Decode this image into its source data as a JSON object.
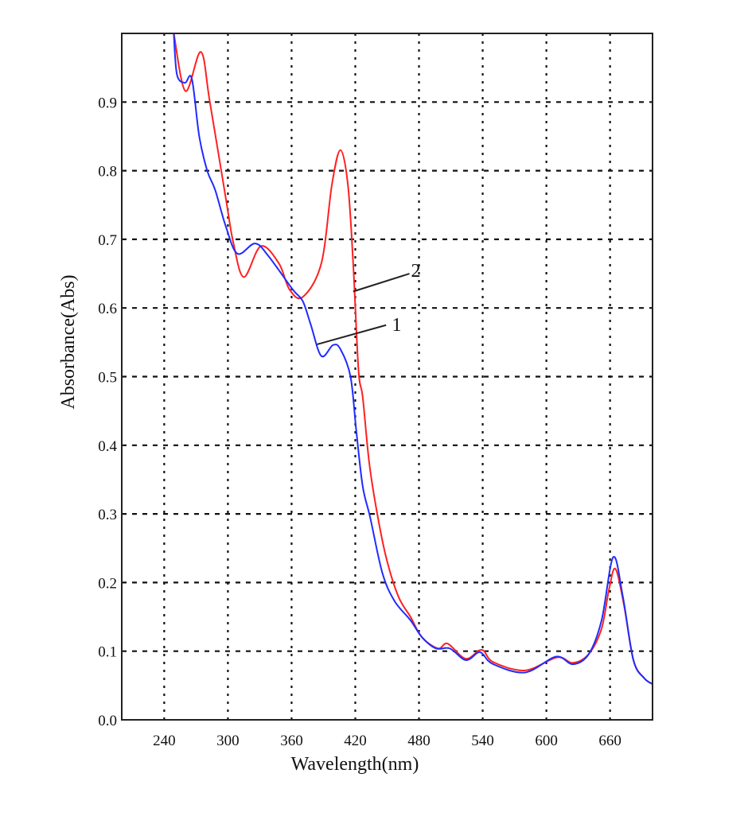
{
  "chart_data": {
    "type": "line",
    "title": "",
    "xlabel": "Wavelength(nm)",
    "ylabel": "Absorbance(Abs)",
    "xlim": [
      200,
      700
    ],
    "ylim": [
      0,
      1.0
    ],
    "grid": true,
    "xticks": [
      240,
      300,
      360,
      420,
      480,
      540,
      600,
      660
    ],
    "xtick_labels": [
      "240",
      "300",
      "360",
      "420",
      "480",
      "540",
      "600",
      "660"
    ],
    "yticks": [
      0,
      0.1,
      0.2,
      0.3,
      0.4,
      0.5,
      0.6,
      0.7,
      0.8,
      0.9
    ],
    "ytick_labels": [
      "0.0",
      "0.1",
      "0.2",
      "0.3",
      "0.4",
      "0.5",
      "0.6",
      "0.7",
      "0.8",
      "0.9"
    ],
    "series": [
      {
        "name": "1",
        "color": "#1f2cff",
        "x": [
          249,
          252,
          259.5,
          266,
          273,
          280.5,
          288,
          298,
          309,
          325.5,
          338,
          361,
          370.5,
          378,
          388,
          399,
          406,
          415.5,
          421,
          427,
          434,
          445.5,
          457,
          472,
          483,
          496,
          509,
          524,
          535.5,
          540,
          550,
          580,
          609,
          625,
          640,
          652,
          663,
          672,
          682,
          692,
          700
        ],
        "y": [
          1.0,
          0.94,
          0.928,
          0.934,
          0.85,
          0.8,
          0.772,
          0.719,
          0.679,
          0.694,
          0.676,
          0.627,
          0.61,
          0.576,
          0.53,
          0.546,
          0.54,
          0.5,
          0.42,
          0.34,
          0.295,
          0.214,
          0.173,
          0.145,
          0.12,
          0.104,
          0.104,
          0.087,
          0.098,
          0.096,
          0.081,
          0.069,
          0.092,
          0.081,
          0.096,
          0.145,
          0.237,
          0.18,
          0.087,
          0.061,
          0.052
        ]
      },
      {
        "name": "2",
        "color": "#ff2020",
        "x": [
          249,
          260,
          274.5,
          283,
          298,
          305,
          315,
          331,
          348,
          358,
          370.5,
          388,
          398,
          406,
          413,
          418,
          423,
          427,
          433,
          440,
          449,
          460.5,
          472,
          483,
          498,
          507,
          524,
          539,
          550,
          580,
          610,
          625,
          640,
          652,
          659,
          665,
          673,
          682,
          692,
          700
        ],
        "y": [
          1.0,
          0.916,
          0.973,
          0.9,
          0.76,
          0.696,
          0.645,
          0.69,
          0.665,
          0.627,
          0.616,
          0.665,
          0.78,
          0.83,
          0.78,
          0.665,
          0.51,
          0.47,
          0.376,
          0.306,
          0.237,
          0.18,
          0.15,
          0.12,
          0.104,
          0.111,
          0.089,
          0.102,
          0.084,
          0.072,
          0.091,
          0.083,
          0.096,
          0.133,
          0.19,
          0.22,
          0.168,
          0.087,
          0.061,
          0.052
        ]
      }
    ],
    "annotations": [
      {
        "text": "1",
        "label_at": [
          459,
          0.577
        ],
        "line_from": [
          384,
          0.547
        ],
        "line_to": [
          449,
          0.575
        ]
      },
      {
        "text": "2",
        "label_at": [
          477,
          0.656
        ],
        "line_from": [
          418,
          0.624
        ],
        "line_to": [
          471,
          0.65
        ]
      }
    ]
  }
}
